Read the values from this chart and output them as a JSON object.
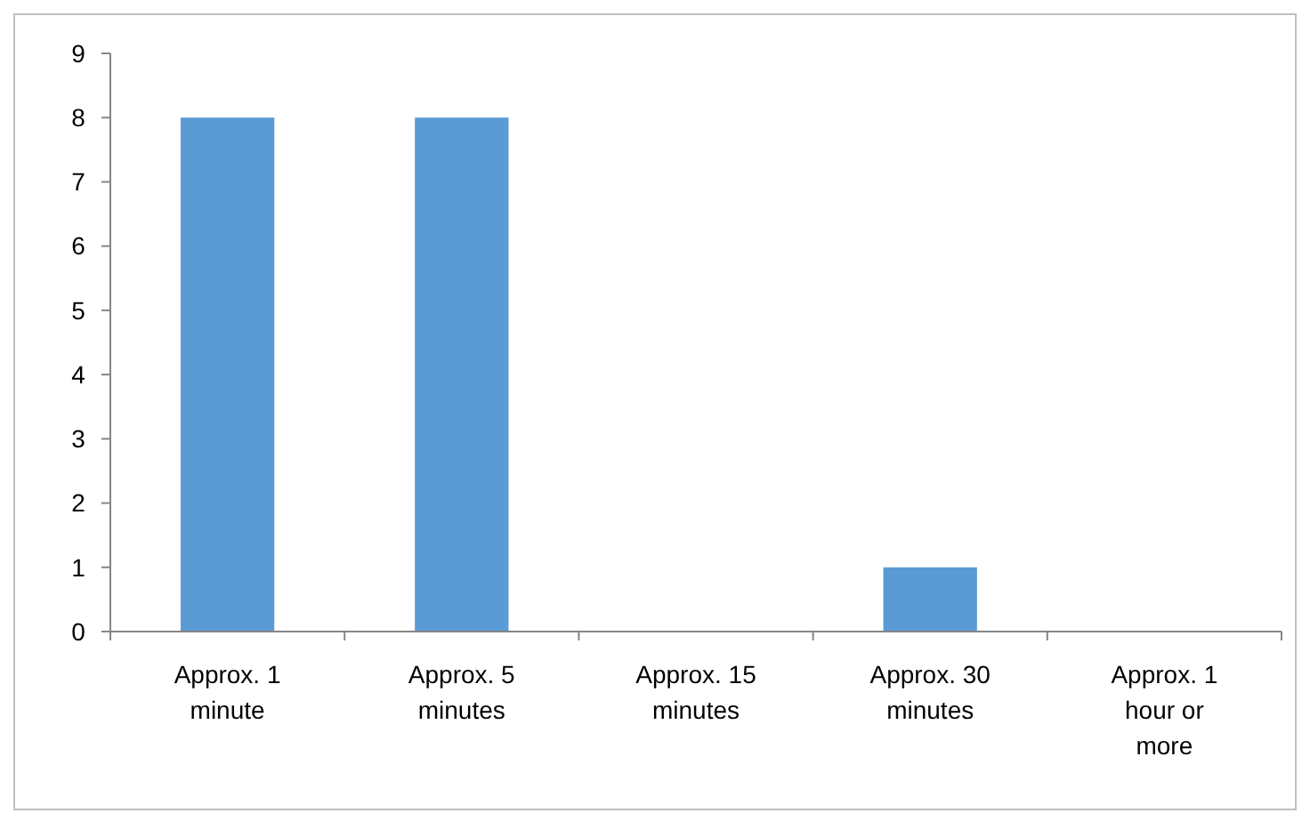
{
  "chart_data": {
    "type": "bar",
    "categories": [
      "Approx. 1 minute",
      "Approx. 5 minutes",
      "Approx. 15 minutes",
      "Approx. 30 minutes",
      "Approx. 1 hour or more"
    ],
    "values": [
      8,
      8,
      0,
      1,
      0
    ],
    "color": "#5b9bd5",
    "ylim": [
      0,
      9
    ],
    "yticks": [
      0,
      1,
      2,
      3,
      4,
      5,
      6,
      7,
      8,
      9
    ],
    "grid": false
  }
}
